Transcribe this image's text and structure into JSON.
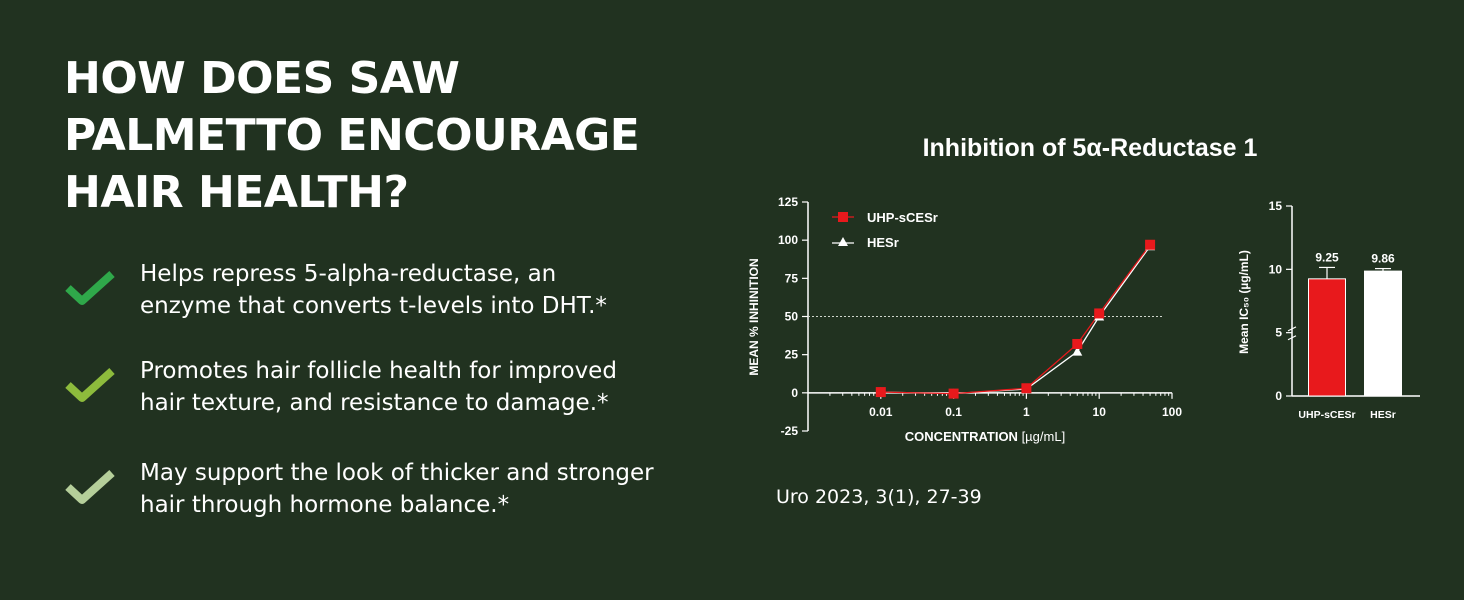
{
  "headline": [
    "HOW DOES SAW",
    "PALMETTO ENCOURAGE",
    "HAIR HEALTH?"
  ],
  "benefits": [
    {
      "lines": [
        "Helps repress 5-alpha-reductase, an",
        "enzyme that converts t-levels into DHT.*"
      ],
      "check_color": "#2fa84a",
      "icon": "check-icon"
    },
    {
      "lines": [
        "Promotes hair follicle health for improved",
        "hair texture, and resistance to damage.*"
      ],
      "check_color": "#8dbb3c",
      "icon": "check-icon"
    },
    {
      "lines": [
        "May support the look of thicker and stronger",
        "hair through hormone balance.*"
      ],
      "check_color": "#b5cf9a",
      "icon": "check-icon"
    }
  ],
  "chart_title": "Inhibition of 5α-Reductase 1",
  "citation": "Uro 2023, 3(1), 27-39",
  "colors": {
    "background": "#213220",
    "series_red": "#e8191c",
    "series_white": "#ffffff"
  },
  "chart_data": [
    {
      "type": "line",
      "title": "Inhibition of 5α-Reductase 1",
      "xlabel": "CONCENTRATION",
      "xlabel_unit": "[µg/mL]",
      "ylabel": "MEAN % INHINITION",
      "x_scale": "log",
      "xlim": [
        0.001,
        100
      ],
      "ylim": [
        -25,
        125
      ],
      "x_ticks": [
        0.01,
        0.1,
        1,
        10,
        100
      ],
      "x_tick_labels": [
        "0.01",
        "0.1",
        "1",
        "10",
        "100"
      ],
      "y_ticks": [
        -25,
        0,
        25,
        50,
        75,
        100,
        125
      ],
      "y_tick_labels": [
        "-25",
        "0",
        "25",
        "50",
        "75",
        "100",
        "125"
      ],
      "reference_line": 50,
      "legend_position": "top-left",
      "series": [
        {
          "name": "UHP-sCESr",
          "marker": "square",
          "color": "#e8191c",
          "x": [
            0.01,
            0.1,
            1,
            5,
            10,
            50
          ],
          "y": [
            0.5,
            -0.5,
            3,
            32,
            52,
            97
          ]
        },
        {
          "name": "HESr",
          "marker": "triangle",
          "color": "#ffffff",
          "x": [
            0.01,
            0.1,
            1,
            5,
            10,
            50
          ],
          "y": [
            0.5,
            -0.5,
            2.5,
            27,
            50,
            96
          ]
        }
      ]
    },
    {
      "type": "bar",
      "ylabel": "Mean IC₅₀ (µg/mL)",
      "ylim": [
        0,
        15
      ],
      "y_ticks": [
        0,
        5,
        10,
        15
      ],
      "y_tick_labels": [
        "0",
        "5",
        "10",
        "15"
      ],
      "categories": [
        "UHP-sCESr",
        "HESr"
      ],
      "values": [
        9.25,
        9.86
      ],
      "value_labels": [
        "9.25",
        "9.86"
      ],
      "error": [
        0.9,
        0.2
      ],
      "colors": [
        "#e8191c",
        "#ffffff"
      ]
    }
  ]
}
